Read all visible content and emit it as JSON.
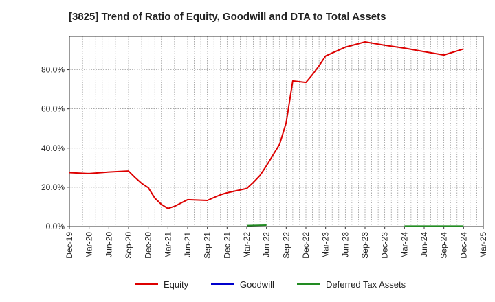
{
  "chart_data": {
    "type": "line",
    "title": "[3825]  Trend of Ratio of Equity, Goodwill and DTA to Total Assets",
    "xlabel": "",
    "ylabel": "",
    "x_tick_labels": [
      "Dec-19",
      "Mar-20",
      "Jun-20",
      "Sep-20",
      "Dec-20",
      "Mar-21",
      "Jun-21",
      "Sep-21",
      "Dec-21",
      "Mar-22",
      "Jun-22",
      "Sep-22",
      "Dec-22",
      "Mar-23",
      "Jun-23",
      "Sep-23",
      "Dec-23",
      "Mar-24",
      "Jun-24",
      "Sep-24",
      "Dec-24",
      "Mar-25"
    ],
    "y_tick_labels": [
      "0.0%",
      "20.0%",
      "40.0%",
      "60.0%",
      "80.0%"
    ],
    "y_ticks": [
      0,
      20,
      40,
      60,
      80
    ],
    "ylim": [
      0,
      97
    ],
    "grid": true,
    "legend_position": "bottom",
    "series": [
      {
        "name": "Equity",
        "color": "#dd0000",
        "points": [
          [
            "2019-12",
            27.5
          ],
          [
            "2020-03",
            27.0
          ],
          [
            "2020-06",
            27.8
          ],
          [
            "2020-09",
            28.3
          ],
          [
            "2020-10",
            25.0
          ],
          [
            "2020-11",
            22.0
          ],
          [
            "2020-12",
            19.8
          ],
          [
            "2021-01",
            14.5
          ],
          [
            "2021-02",
            11.3
          ],
          [
            "2021-03",
            9.2
          ],
          [
            "2021-04",
            10.3
          ],
          [
            "2021-05",
            12.0
          ],
          [
            "2021-06",
            13.7
          ],
          [
            "2021-09",
            13.3
          ],
          [
            "2021-10",
            14.8
          ],
          [
            "2021-11",
            16.2
          ],
          [
            "2021-12",
            17.2
          ],
          [
            "2022-03",
            19.4
          ],
          [
            "2022-04",
            22.5
          ],
          [
            "2022-05",
            26.0
          ],
          [
            "2022-06",
            31.0
          ],
          [
            "2022-07",
            36.5
          ],
          [
            "2022-08",
            42.0
          ],
          [
            "2022-09",
            53.0
          ],
          [
            "2022-10",
            74.3
          ],
          [
            "2022-12",
            73.5
          ],
          [
            "2023-01",
            77.5
          ],
          [
            "2023-02",
            82.0
          ],
          [
            "2023-03",
            87.0
          ],
          [
            "2023-06",
            91.5
          ],
          [
            "2023-09",
            94.2
          ],
          [
            "2023-12",
            92.5
          ],
          [
            "2024-03",
            91.0
          ],
          [
            "2024-06",
            89.2
          ],
          [
            "2024-09",
            87.5
          ],
          [
            "2024-12",
            90.6
          ]
        ]
      },
      {
        "name": "Goodwill",
        "color": "#0000cc",
        "points": []
      },
      {
        "name": "Deferred Tax Assets",
        "color": "#228b22",
        "points": [
          [
            "2022-03",
            0.5
          ],
          [
            "2022-06",
            0.7
          ],
          [
            "2024-03",
            0.2
          ],
          [
            "2024-06",
            0.2
          ],
          [
            "2024-09",
            0.2
          ],
          [
            "2024-12",
            0.2
          ]
        ]
      }
    ]
  }
}
